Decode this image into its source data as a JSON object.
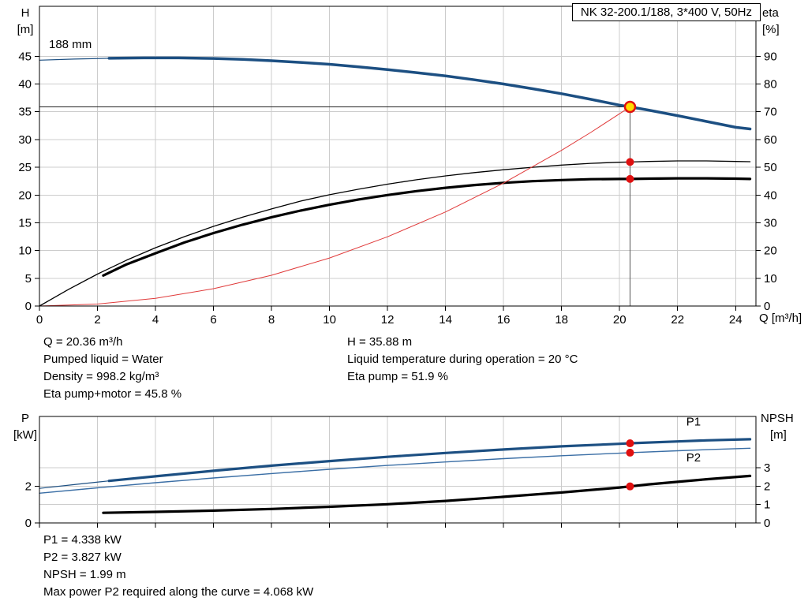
{
  "labels": {
    "h": "H",
    "h_unit": "[m]",
    "eta": "eta",
    "eta_unit": "[%]",
    "q_axis": "Q [m³/h]",
    "p": "P",
    "p_unit": "[kW]",
    "npsh": "NPSH",
    "npsh_unit": "[m]",
    "impeller": "188 mm"
  },
  "info_top_left": [
    "Q = 20.36 m³/h",
    "Pumped liquid = Water",
    "Density = 998.2 kg/m³",
    "Eta pump+motor = 45.8 %"
  ],
  "info_top_right": [
    "H = 35.88 m",
    "Liquid temperature during operation = 20 °C",
    "Eta pump = 51.9 %"
  ],
  "info_bottom": [
    "P1 = 4.338 kW",
    "P2 = 3.827 kW",
    "NPSH = 1.99 m",
    "Max power P2 required along the curve = 4.068 kW"
  ],
  "chart_data": [
    {
      "id": "qh-eta-chart",
      "type": "line",
      "title": "NK 32-200.1/188, 3*400 V, 50Hz",
      "x_label": "Q [m³/h]",
      "y_left_label": "H [m]",
      "y_right_label": "eta [%]",
      "x_range": [
        0,
        24.7
      ],
      "x_ticks": [
        0,
        2,
        4,
        6,
        8,
        10,
        12,
        14,
        16,
        18,
        20,
        22,
        24
      ],
      "x_tick_labels": true,
      "y_left_range": [
        0,
        54
      ],
      "y_left_ticks": [
        0,
        5,
        10,
        15,
        20,
        25,
        30,
        35,
        40,
        45
      ],
      "y_right_range": [
        0,
        108
      ],
      "y_right_ticks": [
        0,
        10,
        20,
        30,
        40,
        50,
        60,
        70,
        80,
        90
      ],
      "grid_y": [
        5,
        10,
        15,
        20,
        25,
        30,
        35,
        40,
        45
      ],
      "impeller_label": "188 mm",
      "duty_point": {
        "Q": 20.36,
        "H": 35.88,
        "eta_pump": 51.9,
        "eta_pump_motor": 45.8
      },
      "crosshair": {
        "x": 20.36,
        "y": 35.88
      },
      "series": [
        {
          "name": "head-curve",
          "legend": "188 mm",
          "axis": "left",
          "color": "#1c4f82",
          "width": 3.5,
          "thin_until": 2.4,
          "points": [
            [
              0,
              44.3
            ],
            [
              1.2,
              44.5
            ],
            [
              2.4,
              44.63
            ],
            [
              3.6,
              44.7
            ],
            [
              4.8,
              44.7
            ],
            [
              6,
              44.6
            ],
            [
              7,
              44.45
            ],
            [
              8,
              44.2
            ],
            [
              9,
              43.9
            ],
            [
              10,
              43.55
            ],
            [
              11,
              43.1
            ],
            [
              12,
              42.6
            ],
            [
              13,
              42.05
            ],
            [
              14,
              41.45
            ],
            [
              15,
              40.75
            ],
            [
              16,
              40.0
            ],
            [
              17,
              39.15
            ],
            [
              18,
              38.25
            ],
            [
              19,
              37.25
            ],
            [
              20,
              36.2
            ],
            [
              20.36,
              35.88
            ],
            [
              21,
              35.3
            ],
            [
              22,
              34.3
            ],
            [
              23,
              33.25
            ],
            [
              24,
              32.2
            ],
            [
              24.5,
              31.9
            ]
          ]
        },
        {
          "name": "eta-pump-curve",
          "axis": "right",
          "color": "#000000",
          "width": 1.3,
          "points": [
            [
              0,
              0
            ],
            [
              1,
              6
            ],
            [
              2,
              11.5
            ],
            [
              3,
              16.5
            ],
            [
              4,
              21
            ],
            [
              5,
              25
            ],
            [
              6,
              28.7
            ],
            [
              7,
              32
            ],
            [
              8,
              35
            ],
            [
              9,
              37.8
            ],
            [
              10,
              40.1
            ],
            [
              11,
              42.1
            ],
            [
              12,
              43.9
            ],
            [
              13,
              45.5
            ],
            [
              14,
              46.9
            ],
            [
              15,
              48.1
            ],
            [
              16,
              49.1
            ],
            [
              17,
              50
            ],
            [
              18,
              50.8
            ],
            [
              19,
              51.4
            ],
            [
              20,
              51.8
            ],
            [
              20.36,
              51.9
            ],
            [
              21,
              52.1
            ],
            [
              22,
              52.3
            ],
            [
              23,
              52.3
            ],
            [
              24,
              52.1
            ],
            [
              24.5,
              52
            ]
          ]
        },
        {
          "name": "eta-pump-motor-curve",
          "axis": "right",
          "color": "#000000",
          "width": 3.2,
          "points": [
            [
              2.2,
              11
            ],
            [
              3,
              15
            ],
            [
              4,
              19
            ],
            [
              5,
              22.9
            ],
            [
              6,
              26.3
            ],
            [
              7,
              29.3
            ],
            [
              8,
              32
            ],
            [
              9,
              34.4
            ],
            [
              10,
              36.5
            ],
            [
              11,
              38.4
            ],
            [
              12,
              40
            ],
            [
              13,
              41.4
            ],
            [
              14,
              42.6
            ],
            [
              15,
              43.6
            ],
            [
              16,
              44.4
            ],
            [
              17,
              45
            ],
            [
              18,
              45.4
            ],
            [
              19,
              45.7
            ],
            [
              20,
              45.8
            ],
            [
              20.36,
              45.8
            ],
            [
              21,
              45.9
            ],
            [
              22,
              46
            ],
            [
              23,
              46
            ],
            [
              24,
              45.9
            ],
            [
              24.5,
              45.8
            ]
          ]
        },
        {
          "name": "system-curve",
          "axis": "left",
          "color": "#e03a3a",
          "width": 1,
          "points": [
            [
              0,
              0
            ],
            [
              2,
              0.35
            ],
            [
              4,
              1.39
            ],
            [
              6,
              3.12
            ],
            [
              8,
              5.54
            ],
            [
              10,
              8.66
            ],
            [
              12,
              12.47
            ],
            [
              14,
              16.96
            ],
            [
              16,
              22.16
            ],
            [
              18,
              28.05
            ],
            [
              19,
              31.27
            ],
            [
              20,
              34.64
            ],
            [
              20.36,
              35.88
            ]
          ]
        }
      ],
      "markers": [
        {
          "x": 20.36,
          "y": 35.88,
          "axis": "left",
          "type": "duty-point"
        },
        {
          "x": 20.36,
          "y": 51.9,
          "axis": "right",
          "type": "dot"
        },
        {
          "x": 20.36,
          "y": 45.8,
          "axis": "right",
          "type": "dot"
        }
      ]
    },
    {
      "id": "power-npsh-chart",
      "type": "line",
      "x_range": [
        0,
        24.7
      ],
      "x_ticks": [
        0,
        2,
        4,
        6,
        8,
        10,
        12,
        14,
        16,
        18,
        20,
        22,
        24
      ],
      "x_tick_labels": false,
      "y_left_label": "P [kW]",
      "y_right_label": "NPSH [m]",
      "y_left_range": [
        0,
        5.8
      ],
      "y_left_ticks": [
        0,
        2
      ],
      "y_right_range": [
        0,
        5.8
      ],
      "y_right_ticks": [
        0,
        1,
        2,
        3
      ],
      "grid_y": [
        1,
        2,
        3
      ],
      "duty_point": {
        "Q": 20.36,
        "P1": 4.338,
        "P2": 3.827,
        "NPSH": 1.99
      },
      "series": [
        {
          "name": "p1-power-curve",
          "axis": "left",
          "color": "#1c4f82",
          "width": 3.2,
          "thin_until": 2.4,
          "label": {
            "text": "P1",
            "x": 22.3,
            "y": 5.3
          },
          "points": [
            [
              0,
              1.88
            ],
            [
              1.2,
              2.09
            ],
            [
              2.4,
              2.29
            ],
            [
              4,
              2.54
            ],
            [
              6,
              2.84
            ],
            [
              8,
              3.12
            ],
            [
              10,
              3.37
            ],
            [
              12,
              3.6
            ],
            [
              14,
              3.81
            ],
            [
              16,
              4.0
            ],
            [
              18,
              4.17
            ],
            [
              20,
              4.31
            ],
            [
              20.36,
              4.34
            ],
            [
              22,
              4.44
            ],
            [
              23,
              4.5
            ],
            [
              24.5,
              4.56
            ]
          ]
        },
        {
          "name": "p2-power-curve",
          "axis": "left",
          "color": "#3a6ea5",
          "width": 1.4,
          "label": {
            "text": "P2",
            "x": 22.3,
            "y": 3.35
          },
          "points": [
            [
              0,
              1.62
            ],
            [
              2,
              1.91
            ],
            [
              4,
              2.19
            ],
            [
              6,
              2.45
            ],
            [
              8,
              2.69
            ],
            [
              10,
              2.92
            ],
            [
              12,
              3.13
            ],
            [
              14,
              3.32
            ],
            [
              16,
              3.5
            ],
            [
              18,
              3.66
            ],
            [
              20,
              3.8
            ],
            [
              20.36,
              3.827
            ],
            [
              22,
              3.93
            ],
            [
              23,
              3.99
            ],
            [
              24.5,
              4.068
            ]
          ]
        },
        {
          "name": "npsh-curve",
          "axis": "right",
          "color": "#000000",
          "width": 3.2,
          "points": [
            [
              2.2,
              0.55
            ],
            [
              4,
              0.6
            ],
            [
              6,
              0.67
            ],
            [
              8,
              0.76
            ],
            [
              10,
              0.88
            ],
            [
              12,
              1.02
            ],
            [
              14,
              1.2
            ],
            [
              16,
              1.42
            ],
            [
              18,
              1.66
            ],
            [
              20,
              1.93
            ],
            [
              20.36,
              1.99
            ],
            [
              21,
              2.1
            ],
            [
              22,
              2.24
            ],
            [
              23,
              2.38
            ],
            [
              24.5,
              2.56
            ]
          ]
        }
      ],
      "markers": [
        {
          "x": 20.36,
          "y": 4.338,
          "axis": "left",
          "type": "dot"
        },
        {
          "x": 20.36,
          "y": 3.827,
          "axis": "left",
          "type": "dot"
        },
        {
          "x": 20.36,
          "y": 1.99,
          "axis": "right",
          "type": "dot"
        }
      ]
    }
  ]
}
